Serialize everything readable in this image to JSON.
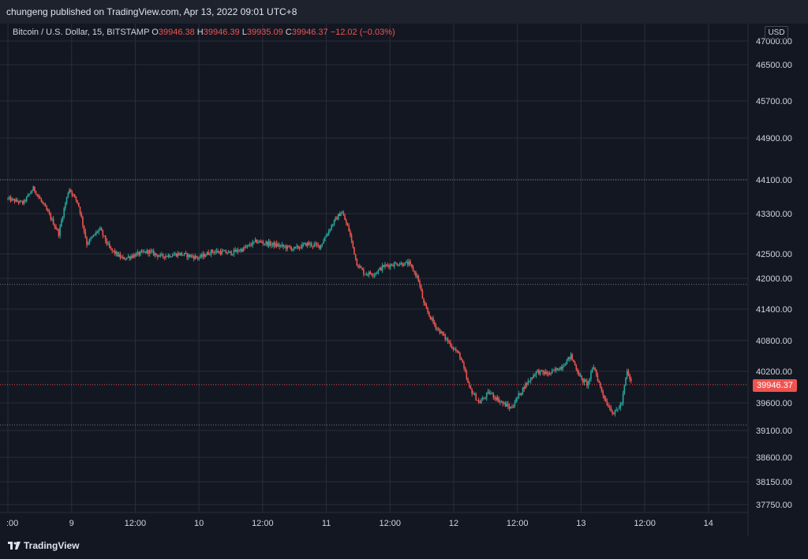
{
  "header": {
    "published_text": "chungeng published on TradingView.com, Apr 13, 2022 09:01 UTC+8"
  },
  "legend": {
    "symbol": "Bitcoin / U.S. Dollar, 15, BITSTAMP",
    "o_label": "O",
    "o_value": "39946.38",
    "h_label": "H",
    "h_value": "39946.39",
    "l_label": "L",
    "l_value": "39935.09",
    "c_label": "C",
    "c_value": "39946.37",
    "change": "−12.02 (−0.03%)"
  },
  "axis": {
    "currency": "USD",
    "last_price_label": "39946.37"
  },
  "footer": {
    "brand": "TradingView"
  },
  "colors": {
    "background": "#131722",
    "up": "#26a69a",
    "down": "#ef5350",
    "grid": "#2a2e39",
    "text": "#d1d4dc"
  },
  "chart_data": {
    "type": "candlestick",
    "symbol": "Bitcoin / U.S. Dollar",
    "interval": "15",
    "exchange": "BITSTAMP",
    "y_ticks": [
      47000,
      46500,
      45700,
      44900,
      44100,
      43300,
      42500,
      42000,
      41400,
      40800,
      40200,
      39600,
      39100,
      38600,
      38150,
      37750
    ],
    "y_tick_labels": [
      "47000.00",
      "46500.00",
      "45700.00",
      "44900.00",
      "44100.00",
      "43300.00",
      "42500.00",
      "42000.00",
      "41400.00",
      "40800.00",
      "40200.00",
      "39600.00",
      "39100.00",
      "38600.00",
      "38150.00",
      "37750.00"
    ],
    "x_ticks": [
      {
        "t": 0.0,
        "label": ":00"
      },
      {
        "t": 0.5,
        "label": "9"
      },
      {
        "t": 1.0,
        "label": "12:00"
      },
      {
        "t": 1.5,
        "label": "10"
      },
      {
        "t": 2.0,
        "label": "12:00"
      },
      {
        "t": 2.5,
        "label": "11"
      },
      {
        "t": 3.0,
        "label": "12:00"
      },
      {
        "t": 3.5,
        "label": "12"
      },
      {
        "t": 4.0,
        "label": "12:00"
      },
      {
        "t": 4.5,
        "label": "13"
      },
      {
        "t": 5.0,
        "label": "12:00"
      },
      {
        "t": 5.5,
        "label": "14"
      }
    ],
    "x_range": [
      0.0,
      5.78
    ],
    "y_range": [
      37600,
      47200
    ],
    "horizontal_levels": [
      {
        "price": 44100,
        "style": "dotted",
        "color": "#787b86"
      },
      {
        "price": 41880,
        "style": "dotted",
        "color": "#787b86"
      },
      {
        "price": 39946.37,
        "style": "dotted",
        "color": "#ef5350"
      },
      {
        "price": 39200,
        "style": "dotted",
        "color": "#787b86"
      }
    ],
    "price_path": [
      [
        0.0,
        43650
      ],
      [
        0.12,
        43550
      ],
      [
        0.2,
        43900
      ],
      [
        0.3,
        43400
      ],
      [
        0.4,
        42900
      ],
      [
        0.48,
        43900
      ],
      [
        0.55,
        43550
      ],
      [
        0.62,
        42700
      ],
      [
        0.72,
        43000
      ],
      [
        0.8,
        42600
      ],
      [
        0.9,
        42400
      ],
      [
        1.0,
        42480
      ],
      [
        1.1,
        42550
      ],
      [
        1.2,
        42450
      ],
      [
        1.35,
        42500
      ],
      [
        1.5,
        42420
      ],
      [
        1.6,
        42550
      ],
      [
        1.75,
        42520
      ],
      [
        1.85,
        42600
      ],
      [
        1.95,
        42750
      ],
      [
        2.05,
        42700
      ],
      [
        2.15,
        42650
      ],
      [
        2.25,
        42600
      ],
      [
        2.35,
        42700
      ],
      [
        2.45,
        42650
      ],
      [
        2.55,
        43100
      ],
      [
        2.62,
        43350
      ],
      [
        2.68,
        42950
      ],
      [
        2.74,
        42300
      ],
      [
        2.8,
        42100
      ],
      [
        2.88,
        42100
      ],
      [
        2.95,
        42250
      ],
      [
        3.05,
        42300
      ],
      [
        3.15,
        42300
      ],
      [
        3.22,
        42000
      ],
      [
        3.27,
        41450
      ],
      [
        3.35,
        41100
      ],
      [
        3.45,
        40800
      ],
      [
        3.55,
        40500
      ],
      [
        3.62,
        39900
      ],
      [
        3.7,
        39600
      ],
      [
        3.78,
        39800
      ],
      [
        3.88,
        39600
      ],
      [
        3.95,
        39500
      ],
      [
        4.05,
        39900
      ],
      [
        4.15,
        40200
      ],
      [
        4.25,
        40150
      ],
      [
        4.35,
        40300
      ],
      [
        4.42,
        40500
      ],
      [
        4.5,
        40050
      ],
      [
        4.55,
        39950
      ],
      [
        4.6,
        40300
      ],
      [
        4.65,
        39900
      ],
      [
        4.7,
        39600
      ],
      [
        4.76,
        39400
      ],
      [
        4.82,
        39600
      ],
      [
        4.86,
        40200
      ],
      [
        4.9,
        39946
      ]
    ]
  }
}
